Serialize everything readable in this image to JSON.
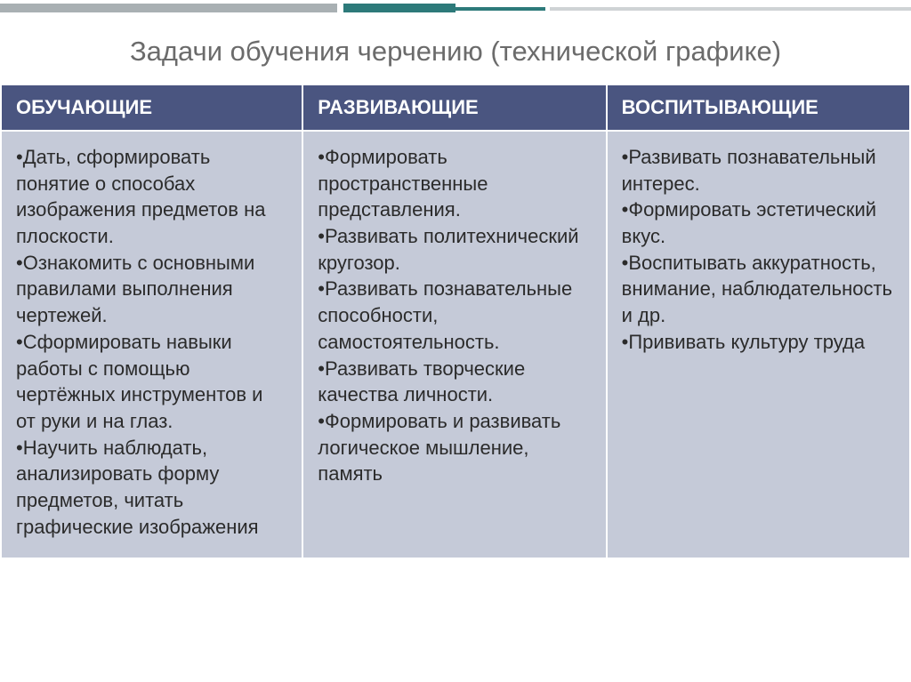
{
  "title": "Задачи обучения черчению (технической графике)",
  "colors": {
    "header_bg": "#4a5580",
    "header_text": "#ffffff",
    "cell_bg": "#c5cad8",
    "cell_text": "#2b2b2b",
    "title_color": "#6b6b6b",
    "deco_teal": "#2d7a7a",
    "deco_gray": "#a9b0b3"
  },
  "typography": {
    "title_fontsize": 31,
    "header_fontsize": 22,
    "cell_fontsize": 22
  },
  "table": {
    "headers": [
      "ОБУЧАЮЩИЕ",
      "РАЗВИВАЮЩИЕ",
      "ВОСПИТЫВАЮЩИЕ"
    ],
    "cells": [
      "•Дать, сформировать понятие о способах изображения предметов на плоскости.\n•Ознакомить с основными правилами выполнения чертежей.\n•Сформировать навыки работы с помощью чертёжных инструментов и от руки и на глаз.\n•Научить наблюдать, анализировать форму предметов, читать графические изображения",
      "•Формировать пространственные представления.\n•Развивать политехнический кругозор.\n•Развивать познавательные способности, самостоятельность.\n•Развивать творческие качества личности.\n•Формировать и развивать логическое мышление, память",
      "•Развивать познавательный интерес.\n•Формировать эстетический вкус.\n•Воспитывать аккуратность, внимание, наблюдательность и др.\n•Прививать культуру труда"
    ]
  }
}
